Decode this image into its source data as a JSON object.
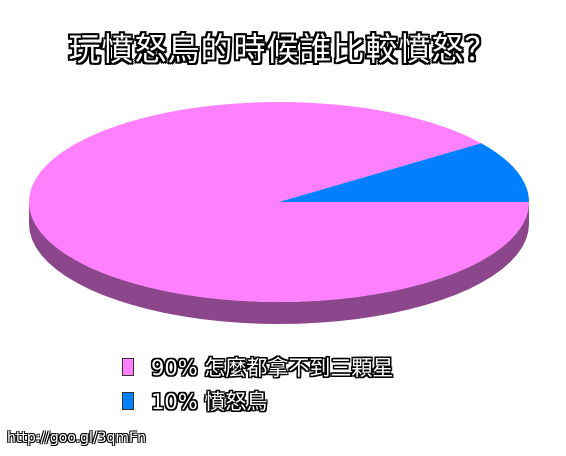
{
  "chart_data": {
    "type": "pie",
    "title": "玩憤怒鳥的時候誰比較憤怒？",
    "slices": [
      {
        "label": "90% 怎麼都拿不到三顆星",
        "value": 90,
        "color": "#ff80ff"
      },
      {
        "label": "10% 憤怒鳥",
        "value": 10,
        "color": "#0080ff"
      }
    ],
    "legend_position": "bottom",
    "style": "3d"
  },
  "source_text": "http://goo.gl/3qmFn"
}
